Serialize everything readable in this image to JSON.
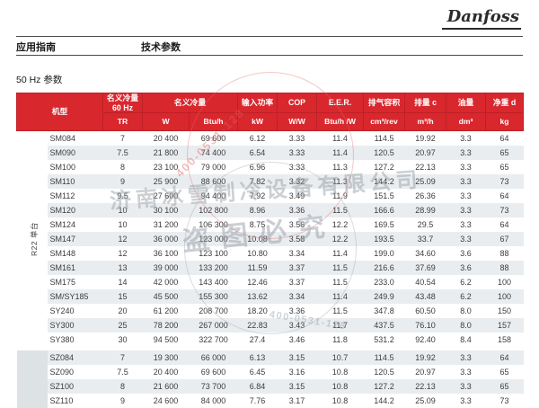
{
  "brand": {
    "logo_text": "Danfoss"
  },
  "nav": {
    "left": "应用指南",
    "right": "技术参数"
  },
  "section": {
    "title": "50 Hz 参数"
  },
  "table": {
    "header": {
      "model": "机型",
      "nominal_60hz_line1": "名义冷量",
      "nominal_60hz_line2": "60 Hz",
      "nominal": "名义冷量",
      "input_power": "输入功率",
      "cop": "COP",
      "eer": "E.E.R.",
      "displacement_volume": "排气容积",
      "displacement": "排量 c",
      "oil_charge": "油量",
      "net_weight": "净重 d"
    },
    "units": [
      "TR",
      "W",
      "Btu/h",
      "kW",
      "W/W",
      "Btu/h /W",
      "cm³/rev",
      "m³/h",
      "dm³",
      "kg"
    ],
    "groups": [
      {
        "label": "R22 单台",
        "rows": [
          [
            "SM084",
            "7",
            "20 400",
            "69 600",
            "6.12",
            "3.33",
            "11.4",
            "114.5",
            "19.92",
            "3.3",
            "64"
          ],
          [
            "SM090",
            "7.5",
            "21 800",
            "74 400",
            "6.54",
            "3.33",
            "11.4",
            "120.5",
            "20.97",
            "3.3",
            "65"
          ],
          [
            "SM100",
            "8",
            "23 100",
            "79 000",
            "6.96",
            "3.33",
            "11.3",
            "127.2",
            "22.13",
            "3.3",
            "65"
          ],
          [
            "SM110",
            "9",
            "25 900",
            "88 600",
            "7.82",
            "3.32",
            "11.3",
            "144.2",
            "25.09",
            "3.3",
            "73"
          ],
          [
            "SM112",
            "9.5",
            "27 600",
            "94 400",
            "7.92",
            "3.49",
            "11.9",
            "151.5",
            "26.36",
            "3.3",
            "64"
          ],
          [
            "SM120",
            "10",
            "30 100",
            "102 800",
            "8.96",
            "3.36",
            "11.5",
            "166.6",
            "28.99",
            "3.3",
            "73"
          ],
          [
            "SM124",
            "10",
            "31 200",
            "106 300",
            "8.75",
            "3.56",
            "12.2",
            "169.5",
            "29.5",
            "3.3",
            "64"
          ],
          [
            "SM147",
            "12",
            "36 000",
            "123 000",
            "10.08",
            "3.58",
            "12.2",
            "193.5",
            "33.7",
            "3.3",
            "67"
          ],
          [
            "SM148",
            "12",
            "36 100",
            "123 100",
            "10.80",
            "3.34",
            "11.4",
            "199.0",
            "34.60",
            "3.6",
            "88"
          ],
          [
            "SM161",
            "13",
            "39 000",
            "133 200",
            "11.59",
            "3.37",
            "11.5",
            "216.6",
            "37.69",
            "3.6",
            "88"
          ],
          [
            "SM175",
            "14",
            "42 000",
            "143 400",
            "12.46",
            "3.37",
            "11.5",
            "233.0",
            "40.54",
            "6.2",
            "100"
          ],
          [
            "SM/SY185",
            "15",
            "45 500",
            "155 300",
            "13.62",
            "3.34",
            "11.4",
            "249.9",
            "43.48",
            "6.2",
            "100"
          ],
          [
            "SY240",
            "20",
            "61 200",
            "208 700",
            "18.20",
            "3.36",
            "11.5",
            "347.8",
            "60.50",
            "8.0",
            "150"
          ],
          [
            "SY300",
            "25",
            "78 200",
            "267 000",
            "22.83",
            "3.43",
            "11.7",
            "437.5",
            "76.10",
            "8.0",
            "157"
          ],
          [
            "SY380",
            "30",
            "94 500",
            "322 700",
            "27.4",
            "3.46",
            "11.8",
            "531.2",
            "92.40",
            "8.4",
            "158"
          ]
        ]
      },
      {
        "label": "",
        "rows": [
          [
            "SZ084",
            "7",
            "19 300",
            "66 000",
            "6.13",
            "3.15",
            "10.7",
            "114.5",
            "19.92",
            "3.3",
            "64"
          ],
          [
            "SZ090",
            "7.5",
            "20 400",
            "69 600",
            "6.45",
            "3.16",
            "10.8",
            "120.5",
            "20.97",
            "3.3",
            "65"
          ],
          [
            "SZ100",
            "8",
            "21 600",
            "73 700",
            "6.84",
            "3.15",
            "10.8",
            "127.2",
            "22.13",
            "3.3",
            "65"
          ],
          [
            "SZ110",
            "9",
            "24 600",
            "84 000",
            "7.76",
            "3.17",
            "10.8",
            "144.2",
            "25.09",
            "3.3",
            "73"
          ]
        ]
      }
    ]
  },
  "watermark": {
    "company": "济南冰雪制冷设备有限公司",
    "warning": "盗图必究",
    "phone_red": "400-0531-128",
    "phone_gray": "400-0531-128"
  },
  "colors": {
    "header_red": "#D9272E",
    "header_border_red": "#BE1F26",
    "row_stripe": "#E9EDF0",
    "group2_bg": "#DDE2E5"
  }
}
